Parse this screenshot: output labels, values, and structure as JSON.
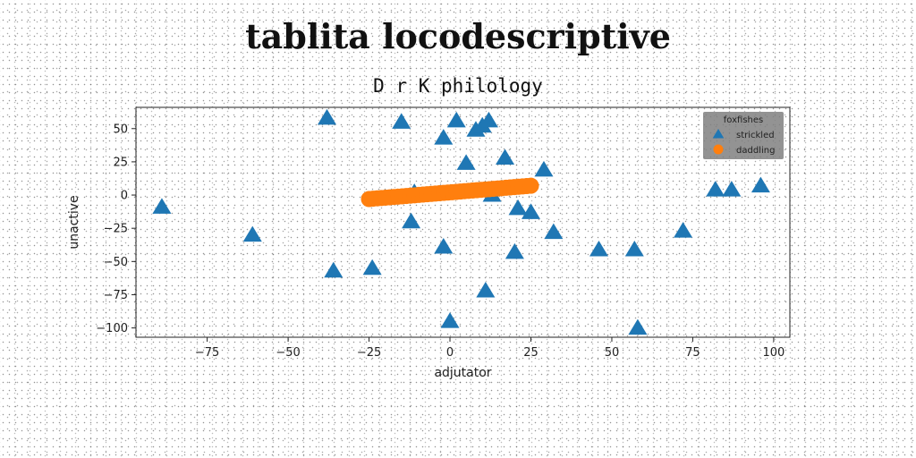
{
  "chart_data": {
    "type": "scatter",
    "title": "tablita locodescriptive",
    "subtitle": "D r K philology",
    "xlabel": "adjutator",
    "ylabel": "unactive",
    "xlim": [
      -97,
      105
    ],
    "ylim": [
      -107,
      66
    ],
    "xticks": [
      -75,
      -50,
      -25,
      0,
      25,
      50,
      75,
      100
    ],
    "xtick_labels": [
      "−75",
      "−50",
      "−25",
      "0",
      "25",
      "50",
      "75",
      "100"
    ],
    "yticks": [
      -100,
      -75,
      -50,
      -25,
      0,
      25,
      50
    ],
    "ytick_labels": [
      "−100",
      "−75",
      "−50",
      "−25",
      "0",
      "25",
      "50"
    ],
    "grid": false,
    "legend": {
      "title": "foxfishes",
      "position": "top-right"
    },
    "series": [
      {
        "name": "strickled",
        "marker": "triangle",
        "color": "#1f77b4",
        "points": [
          [
            -89,
            -9
          ],
          [
            -61,
            -30
          ],
          [
            -38,
            58
          ],
          [
            -36,
            -57
          ],
          [
            -24,
            -55
          ],
          [
            -15,
            55
          ],
          [
            -11,
            2
          ],
          [
            -12,
            -20
          ],
          [
            -2,
            43
          ],
          [
            -2,
            -39
          ],
          [
            0,
            -95
          ],
          [
            2,
            56
          ],
          [
            5,
            24
          ],
          [
            8,
            49
          ],
          [
            10,
            52
          ],
          [
            12,
            56
          ],
          [
            11,
            -72
          ],
          [
            13,
            0
          ],
          [
            16,
            5
          ],
          [
            17,
            28
          ],
          [
            20,
            -43
          ],
          [
            21,
            -10
          ],
          [
            25,
            -13
          ],
          [
            29,
            19
          ],
          [
            32,
            -28
          ],
          [
            46,
            -41
          ],
          [
            57,
            -41
          ],
          [
            58,
            -100
          ],
          [
            72,
            -27
          ],
          [
            82,
            4
          ],
          [
            87,
            4
          ],
          [
            96,
            7
          ]
        ]
      },
      {
        "name": "daddling",
        "marker": "circle",
        "color": "#ff7f0e",
        "line": {
          "x0": -25,
          "y0": -3,
          "x1": 25,
          "y1": 7,
          "count": 40
        }
      }
    ]
  }
}
